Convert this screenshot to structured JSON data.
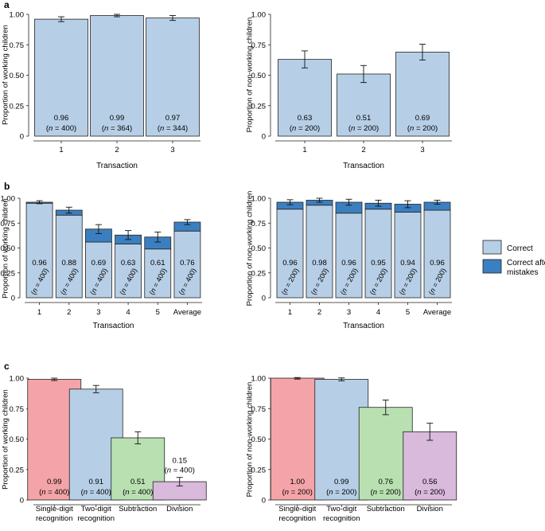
{
  "colors": {
    "correct": "#b7cfe6",
    "mistakes": "#3b7fc0",
    "single": "#f4a4a8",
    "two": "#b7cfe6",
    "sub": "#b9e0b1",
    "div": "#d9b9dc",
    "edge": "#222222"
  },
  "legend": {
    "correct": "Correct",
    "mistakes_line1": "Correct after",
    "mistakes_line2": "mistakes"
  },
  "chart_data": [
    {
      "id": "a-left",
      "panel_label": "a",
      "type": "bar",
      "xlabel": "Transaction",
      "ylabel": "Proportion of working children",
      "ylim": [
        0,
        1
      ],
      "yticks": [
        "0",
        "0.25",
        "0.50",
        "0.75",
        "1.00"
      ],
      "categories": [
        "1",
        "2",
        "3"
      ],
      "values": [
        0.96,
        0.99,
        0.97
      ],
      "errors": [
        0.02,
        0.01,
        0.02
      ],
      "labels": [
        "0.96",
        "0.99",
        "0.97"
      ],
      "n_labels": [
        "(n = 400)",
        "(n = 364)",
        "(n = 344)"
      ]
    },
    {
      "id": "a-right",
      "type": "bar",
      "xlabel": "Transaction",
      "ylabel": "Proportion of non-working children",
      "ylim": [
        0,
        1
      ],
      "yticks": [
        "0",
        "0.25",
        "0.50",
        "0.75",
        "1.00"
      ],
      "categories": [
        "1",
        "2",
        "3"
      ],
      "values": [
        0.63,
        0.51,
        0.69
      ],
      "errors": [
        0.07,
        0.07,
        0.065
      ],
      "labels": [
        "0.63",
        "0.51",
        "0.69"
      ],
      "n_labels": [
        "(n = 200)",
        "(n = 200)",
        "(n = 200)"
      ]
    },
    {
      "id": "b-left",
      "panel_label": "b",
      "type": "bar",
      "stacked": true,
      "xlabel": "Transaction",
      "ylabel": "Proportion of working children",
      "ylim": [
        0,
        1
      ],
      "yticks": [
        "0",
        "0.25",
        "0.50",
        "0.75",
        "1.00"
      ],
      "categories": [
        "1",
        "2",
        "3",
        "4",
        "5",
        "Average"
      ],
      "series": [
        {
          "name": "Correct",
          "values": [
            0.95,
            0.83,
            0.56,
            0.54,
            0.49,
            0.67
          ]
        },
        {
          "name": "Correct after mistakes",
          "values": [
            0.01,
            0.05,
            0.13,
            0.09,
            0.12,
            0.09
          ]
        }
      ],
      "errors": [
        0.015,
        0.03,
        0.045,
        0.045,
        0.05,
        0.025
      ],
      "labels": [
        "0.96",
        "0.88",
        "0.69",
        "0.63",
        "0.61",
        "0.76"
      ],
      "n_labels": [
        "(n = 400)",
        "(n = 400)",
        "(n = 400)",
        "(n = 400)",
        "(n = 400)",
        "(n = 400)"
      ]
    },
    {
      "id": "b-right",
      "type": "bar",
      "stacked": true,
      "xlabel": "Transaction",
      "ylabel": "Proportion of non-working children",
      "ylim": [
        0,
        1
      ],
      "yticks": [
        "0",
        "0.25",
        "0.50",
        "0.75",
        "1.00"
      ],
      "categories": [
        "1",
        "2",
        "3",
        "4",
        "5",
        "Average"
      ],
      "series": [
        {
          "name": "Correct",
          "values": [
            0.89,
            0.93,
            0.85,
            0.89,
            0.86,
            0.88
          ]
        },
        {
          "name": "Correct after mistakes",
          "values": [
            0.07,
            0.05,
            0.11,
            0.06,
            0.08,
            0.08
          ]
        }
      ],
      "errors": [
        0.025,
        0.02,
        0.03,
        0.03,
        0.035,
        0.02
      ],
      "labels": [
        "0.96",
        "0.98",
        "0.96",
        "0.95",
        "0.94",
        "0.96"
      ],
      "n_labels": [
        "(n = 200)",
        "(n = 200)",
        "(n = 200)",
        "(n = 200)",
        "(n = 200)",
        "(n = 200)"
      ]
    },
    {
      "id": "c-left",
      "panel_label": "c",
      "type": "bar",
      "xlabel": "",
      "ylabel": "Proportion of working children",
      "ylim": [
        0,
        1
      ],
      "yticks": [
        "0",
        "0.25",
        "0.50",
        "0.75",
        "1.00"
      ],
      "categories": [
        "Single-digit|recognition",
        "Two-digit|recognition",
        "Subtraction",
        "Division"
      ],
      "values": [
        0.99,
        0.91,
        0.51,
        0.15
      ],
      "errors": [
        0.01,
        0.03,
        0.05,
        0.035
      ],
      "labels": [
        "0.99",
        "0.91",
        "0.51",
        "0.15"
      ],
      "n_labels": [
        "(n = 400)",
        "(n = 400)",
        "(n = 400)",
        "(n = 400)"
      ]
    },
    {
      "id": "c-right",
      "type": "bar",
      "xlabel": "",
      "ylabel": "Proportion of non-working children",
      "ylim": [
        0,
        1
      ],
      "yticks": [
        "0",
        "0.25",
        "0.50",
        "0.75",
        "1.00"
      ],
      "categories": [
        "Single-digit|recognition",
        "Two-digit|recognition",
        "Subtraction",
        "Division"
      ],
      "values": [
        1.0,
        0.99,
        0.76,
        0.56
      ],
      "errors": [
        0.008,
        0.012,
        0.06,
        0.07
      ],
      "labels": [
        "1.00",
        "0.99",
        "0.76",
        "0.56"
      ],
      "n_labels": [
        "(n = 200)",
        "(n = 200)",
        "(n = 200)",
        "(n = 200)"
      ]
    }
  ]
}
